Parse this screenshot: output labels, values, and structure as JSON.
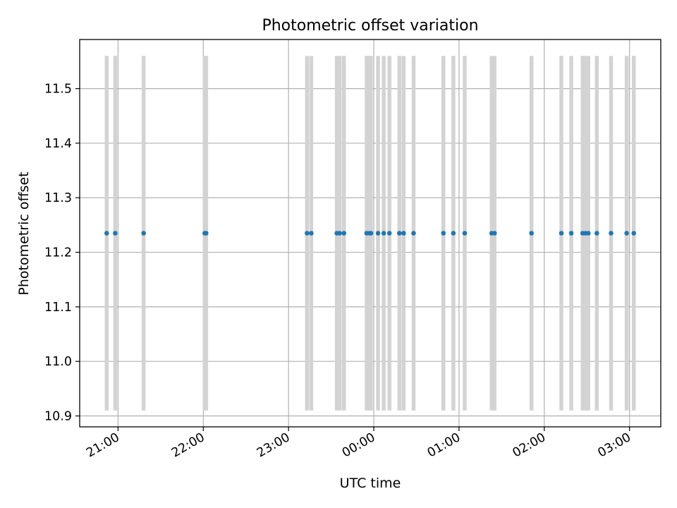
{
  "chart_data": {
    "type": "scatter",
    "title": "Photometric offset variation",
    "xlabel": "UTC time",
    "ylabel": "Photometric offset",
    "x_axis_type": "time",
    "x_tick_labels": [
      "21:00",
      "22:00",
      "23:00",
      "00:00",
      "01:00",
      "02:00",
      "03:00"
    ],
    "y_ticks": [
      10.9,
      11.0,
      11.1,
      11.2,
      11.3,
      11.4,
      11.5
    ],
    "y_tick_labels": [
      "10.9",
      "11.0",
      "11.1",
      "11.2",
      "11.3",
      "11.4",
      "11.5"
    ],
    "xlim": [
      "20:33",
      "03:22"
    ],
    "ylim": [
      10.88,
      11.59
    ],
    "grid": true,
    "point_color": "#1f77b4",
    "errorbar_color": "#d3d3d3",
    "errorbar_range": [
      10.91,
      11.56
    ],
    "points": [
      {
        "x": "20:52",
        "y": 11.235
      },
      {
        "x": "20:58",
        "y": 11.235
      },
      {
        "x": "21:18",
        "y": 11.235
      },
      {
        "x": "22:01",
        "y": 11.235
      },
      {
        "x": "22:02",
        "y": 11.235
      },
      {
        "x": "23:13",
        "y": 11.235
      },
      {
        "x": "23:16",
        "y": 11.235
      },
      {
        "x": "23:34",
        "y": 11.235
      },
      {
        "x": "23:36",
        "y": 11.235
      },
      {
        "x": "23:39",
        "y": 11.235
      },
      {
        "x": "23:55",
        "y": 11.235
      },
      {
        "x": "23:57",
        "y": 11.235
      },
      {
        "x": "23:58",
        "y": 11.235
      },
      {
        "x": "00:03",
        "y": 11.235
      },
      {
        "x": "00:07",
        "y": 11.235
      },
      {
        "x": "00:11",
        "y": 11.235
      },
      {
        "x": "00:18",
        "y": 11.235
      },
      {
        "x": "00:21",
        "y": 11.235
      },
      {
        "x": "00:28",
        "y": 11.235
      },
      {
        "x": "00:49",
        "y": 11.235
      },
      {
        "x": "00:56",
        "y": 11.235
      },
      {
        "x": "01:04",
        "y": 11.235
      },
      {
        "x": "01:23",
        "y": 11.235
      },
      {
        "x": "01:25",
        "y": 11.235
      },
      {
        "x": "01:51",
        "y": 11.235
      },
      {
        "x": "02:12",
        "y": 11.235
      },
      {
        "x": "02:19",
        "y": 11.235
      },
      {
        "x": "02:27",
        "y": 11.235
      },
      {
        "x": "02:29",
        "y": 11.235
      },
      {
        "x": "02:31",
        "y": 11.235
      },
      {
        "x": "02:37",
        "y": 11.235
      },
      {
        "x": "02:47",
        "y": 11.235
      },
      {
        "x": "02:58",
        "y": 11.235
      },
      {
        "x": "03:03",
        "y": 11.235
      }
    ]
  }
}
